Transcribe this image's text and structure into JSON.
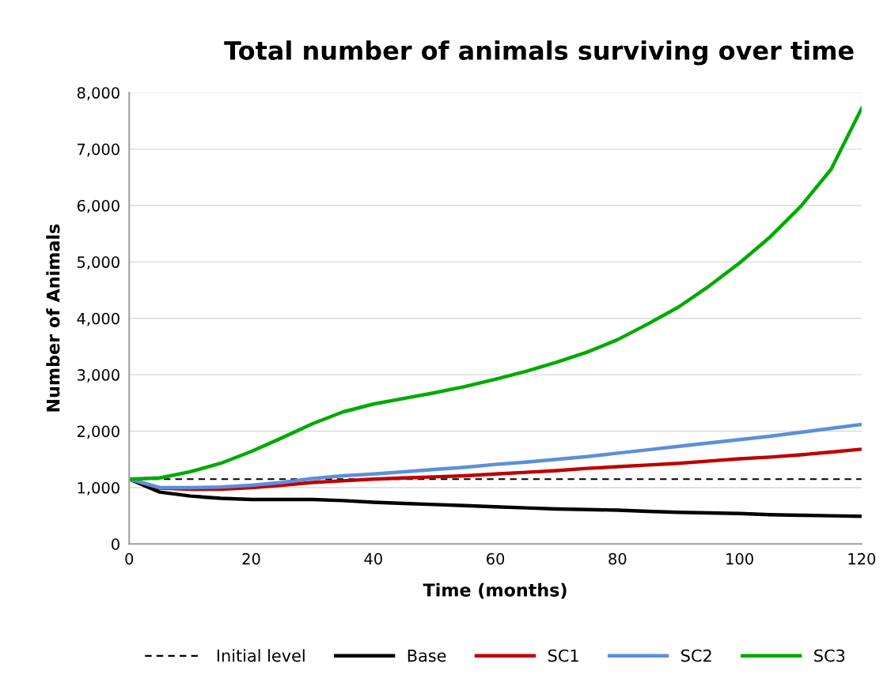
{
  "chart_data": {
    "type": "line",
    "title": "Total number of animals surviving over time",
    "xlabel": "Time (months)",
    "ylabel": "Number of Animals",
    "x": [
      0,
      5,
      10,
      15,
      20,
      25,
      30,
      35,
      40,
      45,
      50,
      55,
      60,
      65,
      70,
      75,
      80,
      85,
      90,
      95,
      100,
      105,
      110,
      115,
      120
    ],
    "xlim": [
      0,
      120
    ],
    "xticks": [
      0,
      20,
      40,
      60,
      80,
      100,
      120
    ],
    "ylim": [
      0,
      8000
    ],
    "yticks": [
      0,
      {
        "value": 1000,
        "label": "1,000"
      },
      {
        "value": 2000,
        "label": "2,000"
      },
      {
        "value": 3000,
        "label": "3,000"
      },
      {
        "value": 4000,
        "label": "4,000"
      },
      {
        "value": 5000,
        "label": "5,000"
      },
      {
        "value": 6000,
        "label": "6,000"
      },
      {
        "value": 7000,
        "label": "7,000"
      },
      {
        "value": 8000,
        "label": "8,000"
      }
    ],
    "grid": "y",
    "legend": "bottom",
    "line_style": "solid",
    "marker": "none",
    "ref_lines": [
      {
        "axis": "y",
        "value": 1150,
        "label": "Initial level",
        "color": "#000000",
        "line_style": "dashed"
      }
    ],
    "series": [
      {
        "name": "Base",
        "color": "#000000",
        "values": [
          1150,
          920,
          850,
          810,
          790,
          790,
          790,
          770,
          740,
          720,
          700,
          680,
          660,
          640,
          620,
          610,
          600,
          580,
          560,
          550,
          540,
          520,
          510,
          500,
          490
        ]
      },
      {
        "name": "SC1",
        "color": "#c00000",
        "values": [
          1150,
          990,
          970,
          970,
          1000,
          1040,
          1090,
          1120,
          1150,
          1170,
          1190,
          1210,
          1240,
          1270,
          1300,
          1340,
          1370,
          1400,
          1430,
          1470,
          1510,
          1540,
          1580,
          1630,
          1680
        ]
      },
      {
        "name": "SC2",
        "color": "#5b8fd9",
        "values": [
          1150,
          1000,
          1000,
          1010,
          1040,
          1090,
          1160,
          1210,
          1240,
          1280,
          1320,
          1360,
          1410,
          1450,
          1500,
          1550,
          1610,
          1670,
          1730,
          1790,
          1850,
          1910,
          1980,
          2050,
          2120
        ]
      },
      {
        "name": "SC3",
        "color": "#00aa00",
        "values": [
          1150,
          1170,
          1280,
          1430,
          1640,
          1880,
          2130,
          2340,
          2480,
          2580,
          2680,
          2790,
          2920,
          3060,
          3220,
          3400,
          3620,
          3900,
          4200,
          4570,
          4980,
          5440,
          5980,
          6640,
          7720
        ]
      }
    ]
  }
}
